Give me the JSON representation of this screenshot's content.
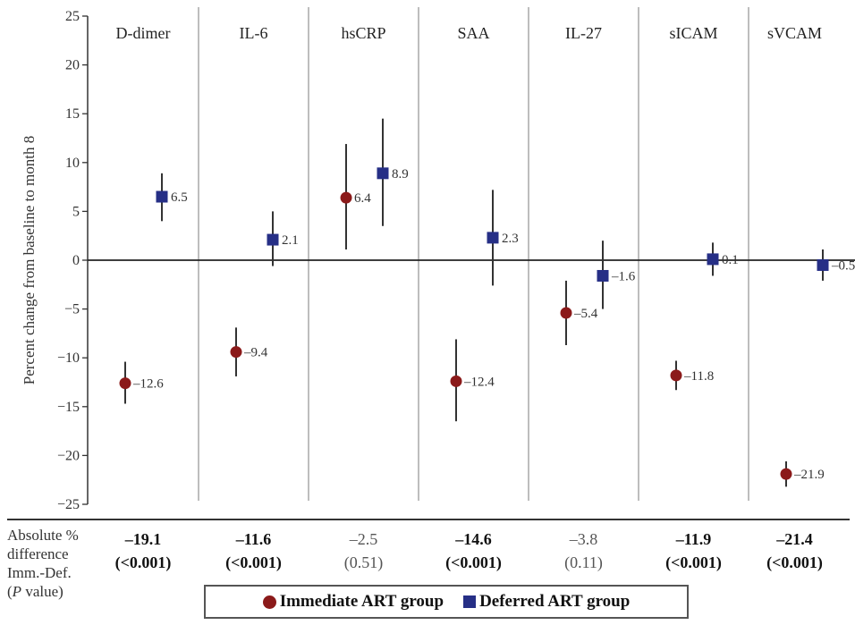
{
  "chart_data": {
    "type": "scatter",
    "ylabel": "Percent change from baseline to month 8",
    "ylim": [
      -25,
      25
    ],
    "yticks": [
      25,
      20,
      15,
      10,
      5,
      0,
      -5,
      -10,
      -15,
      -20,
      -25
    ],
    "grid": false,
    "colors": {
      "immediate": "#8b1a1a",
      "deferred": "#262f86"
    },
    "categories": [
      "D-dimer",
      "IL-6",
      "hsCRP",
      "SAA",
      "IL-27",
      "sICAM",
      "sVCAM"
    ],
    "series": [
      {
        "name": "Immediate ART group",
        "marker": "circle",
        "values": [
          -12.6,
          -9.4,
          6.4,
          -12.4,
          -5.4,
          -11.8,
          -21.9
        ],
        "labels": [
          "–12.6",
          "–9.4",
          "6.4",
          "–12.4",
          "–5.4",
          "–11.8",
          "–21.9"
        ],
        "ci_low": [
          -14.7,
          -11.9,
          1.1,
          -16.5,
          -8.7,
          -13.3,
          -23.2
        ],
        "ci_high": [
          -10.4,
          -6.9,
          11.9,
          -8.1,
          -2.1,
          -10.3,
          -20.6
        ]
      },
      {
        "name": "Deferred ART group",
        "marker": "square",
        "values": [
          6.5,
          2.1,
          8.9,
          2.3,
          -1.6,
          0.1,
          -0.5
        ],
        "labels": [
          "6.5",
          "2.1",
          "8.9",
          "2.3",
          "–1.6",
          "0.1",
          "–0.5"
        ],
        "ci_low": [
          4.0,
          -0.6,
          3.5,
          -2.6,
          -5.0,
          -1.6,
          -2.1
        ],
        "ci_high": [
          8.9,
          5.0,
          14.5,
          7.2,
          2.0,
          1.8,
          1.1
        ]
      }
    ]
  },
  "difference_row": {
    "label_lines": [
      "Absolute %",
      "difference",
      "Imm.-Def.",
      "value"
    ],
    "label_p_italic": "P",
    "items": [
      {
        "value": "–19.1",
        "p": "(<0.001)",
        "significant": true
      },
      {
        "value": "–11.6",
        "p": "(<0.001)",
        "significant": true
      },
      {
        "value": "–2.5",
        "p": "(0.51)",
        "significant": false
      },
      {
        "value": "–14.6",
        "p": "(<0.001)",
        "significant": true
      },
      {
        "value": "–3.8",
        "p": "(0.11)",
        "significant": false
      },
      {
        "value": "–11.9",
        "p": "(<0.001)",
        "significant": true
      },
      {
        "value": "–21.4",
        "p": "(<0.001)",
        "significant": true
      }
    ]
  },
  "legend": {
    "immediate": "Immediate ART group",
    "deferred": "Deferred ART group"
  }
}
